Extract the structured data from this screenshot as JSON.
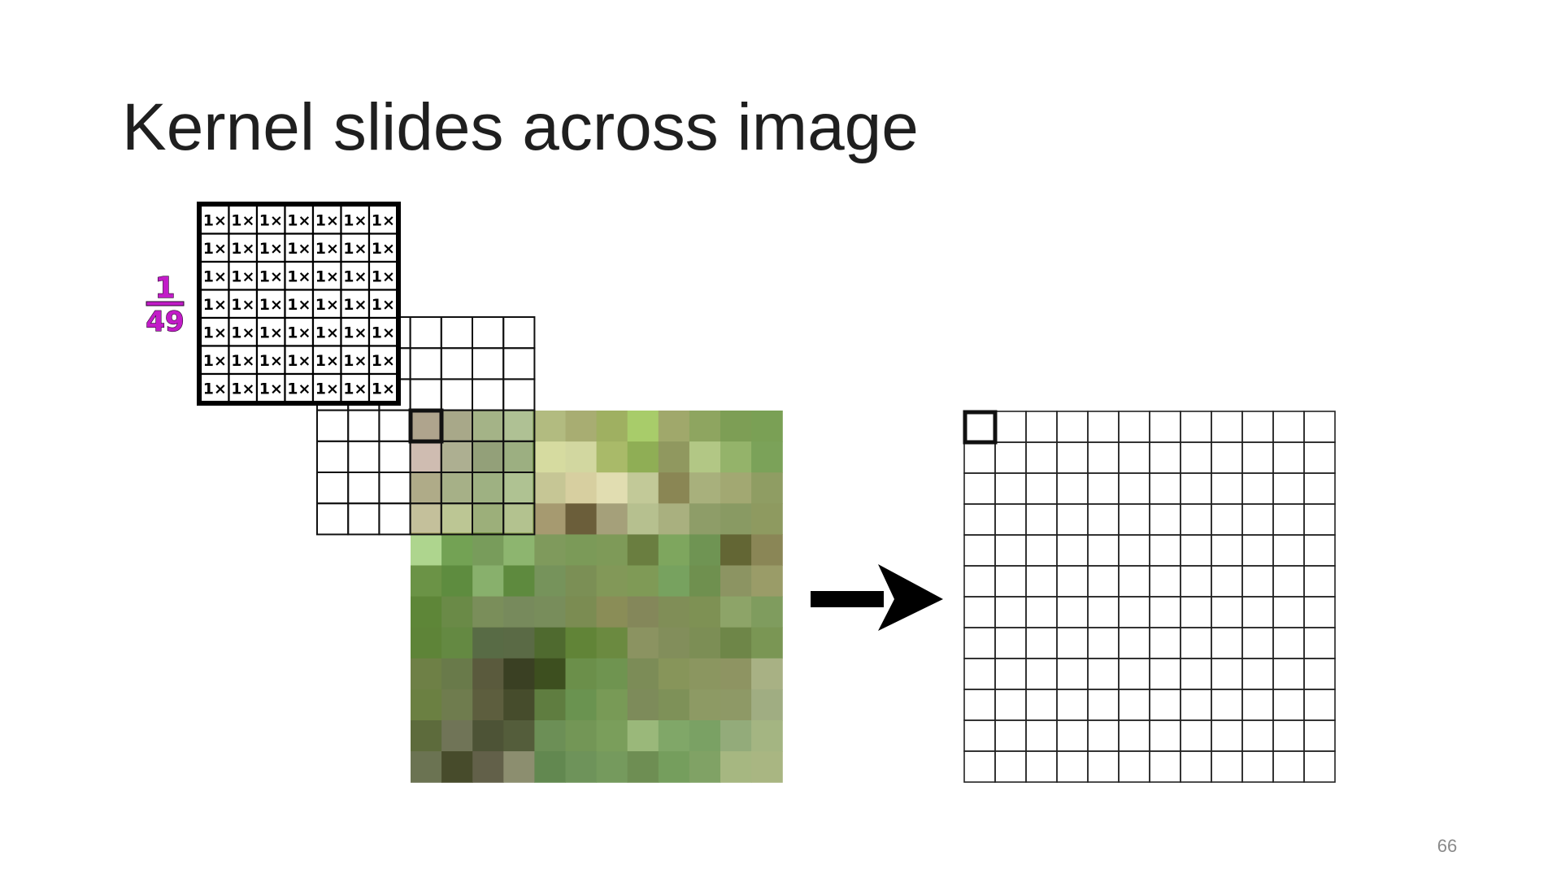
{
  "slide": {
    "title": "Kernel slides across image",
    "page_number": "66"
  },
  "kernel": {
    "size": 7,
    "cell_label": "1×",
    "scale_numerator": "1",
    "scale_denominator": "49",
    "scale_color": "#c21cc8"
  },
  "input_image": {
    "rows": 12,
    "cols": 12,
    "pixels": [
      [
        "#8a7a58",
        "#7f7f52",
        "#7a8f4f",
        "#8aa462",
        "#b2bb80",
        "#a8ad72",
        "#9fb061",
        "#a8cc6a",
        "#a0a86b",
        "#8ea560",
        "#7d9e55",
        "#7aa055"
      ],
      [
        "#b99c8c",
        "#878a5e",
        "#60733a",
        "#6d8a46",
        "#d6dba0",
        "#d2d7a0",
        "#a9ba69",
        "#8fae55",
        "#90985f",
        "#b2c785",
        "#94b36a",
        "#7ba259"
      ],
      [
        "#8a8350",
        "#7d8b4f",
        "#708c48",
        "#89a55f",
        "#c6c695",
        "#d7cfa0",
        "#e1ddb1",
        "#c2c998",
        "#8a8654",
        "#a8b07c",
        "#a2a872",
        "#8f9d63"
      ],
      [
        "#a8a36c",
        "#9cab62",
        "#6d8a3c",
        "#8fa55a",
        "#a69a70",
        "#6b5e3a",
        "#a5a07a",
        "#b6c08f",
        "#a9b07f",
        "#8e9d68",
        "#899a63",
        "#8e9a60"
      ],
      [
        "#aed58e",
        "#73a254",
        "#789c5b",
        "#8db56f",
        "#7f9a5c",
        "#7b9a58",
        "#7e9a58",
        "#6a7e40",
        "#7ea65e",
        "#6f9453",
        "#636634",
        "#8a8656"
      ],
      [
        "#6b9346",
        "#5e8c3f",
        "#88b06c",
        "#5e8a3e",
        "#76935b",
        "#7b8f55",
        "#829858",
        "#7f9a56",
        "#77a25f",
        "#6f904f",
        "#8c9462",
        "#9a9c68"
      ],
      [
        "#5e8638",
        "#6a8a47",
        "#7a8e5a",
        "#778a5c",
        "#788d5b",
        "#7b8c52",
        "#8a8d57",
        "#84875a",
        "#808e57",
        "#7e9154",
        "#8da468",
        "#7f9c5e"
      ],
      [
        "#5e8438",
        "#648942",
        "#586b45",
        "#5a6a45",
        "#4f6a2f",
        "#618437",
        "#6b8a40",
        "#8b9361",
        "#828e5b",
        "#7c8e55",
        "#6e8648",
        "#7a9654"
      ],
      [
        "#6e8046",
        "#697a4a",
        "#5a5a3d",
        "#3a4023",
        "#3d4f1f",
        "#6b8f4a",
        "#6f9450",
        "#7c8c57",
        "#87955a",
        "#8b9660",
        "#8e9462",
        "#a8b184"
      ],
      [
        "#6b8042",
        "#6f7c4e",
        "#5d5e3e",
        "#464c2c",
        "#5f7d40",
        "#6a9350",
        "#789a56",
        "#7d8b5a",
        "#7e9158",
        "#8d9a64",
        "#8e9966",
        "#a0ad82"
      ],
      [
        "#5d6b3c",
        "#707457",
        "#4d5336",
        "#545d3b",
        "#6c8f56",
        "#739656",
        "#7a9e5b",
        "#9ab87a",
        "#80a768",
        "#7aa164",
        "#93ab7a",
        "#a4b582"
      ],
      [
        "#6b7352",
        "#474b2b",
        "#626049",
        "#8c8e6f",
        "#628850",
        "#6e935a",
        "#759a5d",
        "#6e8e53",
        "#759e5d",
        "#80a265",
        "#a6b781",
        "#a9b682"
      ]
    ]
  },
  "output_grid": {
    "rows": 12,
    "cols": 12,
    "highlighted_cell": [
      0,
      0
    ]
  }
}
